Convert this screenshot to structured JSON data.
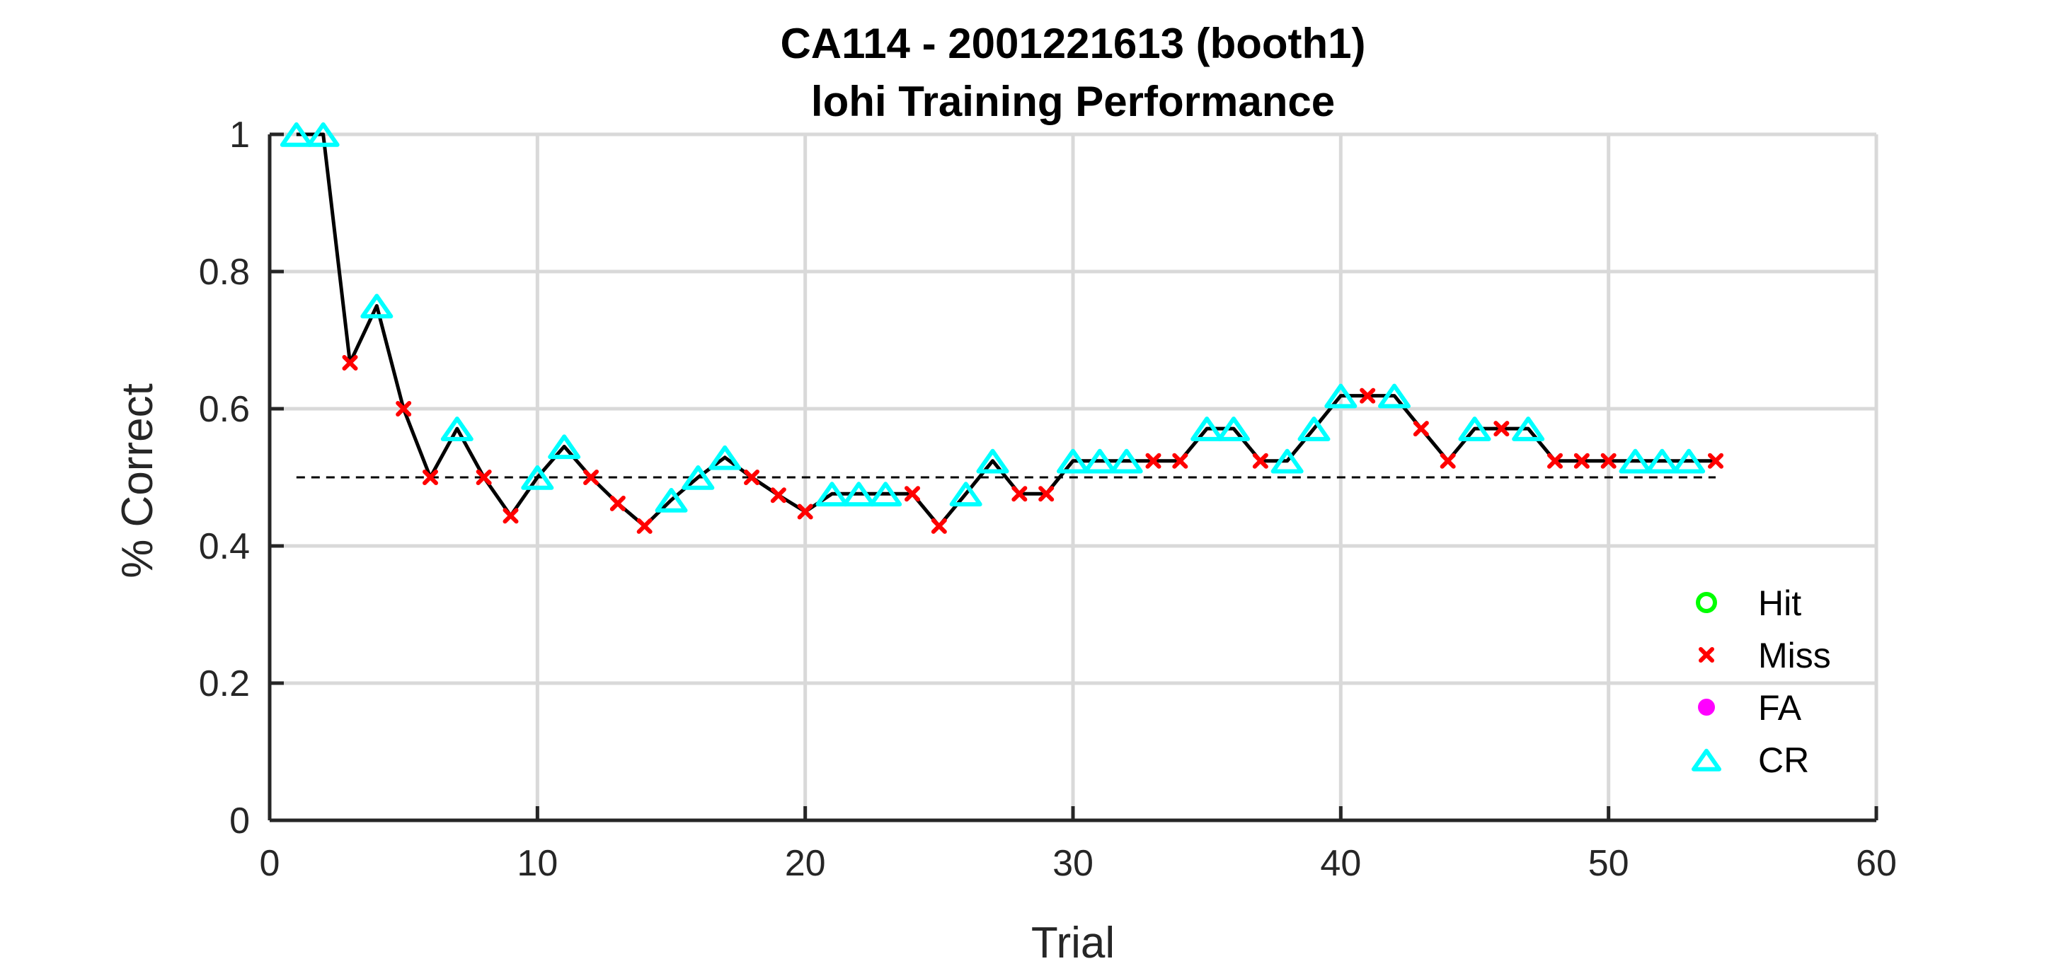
{
  "chart_data": {
    "type": "line",
    "title": "CA114 - 2001221613 (booth1)",
    "subtitle": "lohi Training Performance",
    "xlabel": "Trial",
    "ylabel": "% Correct",
    "xlim": [
      0,
      60
    ],
    "ylim": [
      0,
      1
    ],
    "xticks": [
      0,
      10,
      20,
      30,
      40,
      50,
      60
    ],
    "yticks": [
      0,
      0.2,
      0.4,
      0.6,
      0.8,
      1
    ],
    "xtick_labels": [
      "0",
      "10",
      "20",
      "30",
      "40",
      "50",
      "60"
    ],
    "ytick_labels": [
      "0",
      "0.2",
      "0.4",
      "0.6",
      "0.8",
      "1"
    ],
    "grid": true,
    "chance_level": 0.5,
    "legend_position": "bottom-right",
    "legend": [
      {
        "label": "Hit",
        "marker": "circle",
        "color": "#00ff00"
      },
      {
        "label": "Miss",
        "marker": "x",
        "color": "#ff0000"
      },
      {
        "label": "FA",
        "marker": "dot",
        "color": "#ff00ff"
      },
      {
        "label": "CR",
        "marker": "triangle",
        "color": "#00ffff"
      }
    ],
    "x": [
      1,
      2,
      3,
      4,
      5,
      6,
      7,
      8,
      9,
      10,
      11,
      12,
      13,
      14,
      15,
      16,
      17,
      18,
      19,
      20,
      21,
      22,
      23,
      24,
      25,
      26,
      27,
      28,
      29,
      30,
      31,
      32,
      33,
      34,
      35,
      36,
      37,
      38,
      39,
      40,
      41,
      42,
      43,
      44,
      45,
      46,
      47,
      48,
      49,
      50,
      51,
      52,
      53,
      54
    ],
    "y": [
      1,
      1,
      0.667,
      0.75,
      0.6,
      0.5,
      0.571,
      0.5,
      0.444,
      0.5,
      0.545,
      0.5,
      0.462,
      0.429,
      0.467,
      0.5,
      0.529,
      0.5,
      0.474,
      0.45,
      0.476,
      0.476,
      0.476,
      0.476,
      0.429,
      0.476,
      0.524,
      0.476,
      0.476,
      0.524,
      0.524,
      0.524,
      0.524,
      0.524,
      0.571,
      0.571,
      0.524,
      0.524,
      0.571,
      0.619,
      0.619,
      0.619,
      0.571,
      0.524,
      0.571,
      0.571,
      0.571,
      0.524,
      0.524,
      0.524,
      0.524,
      0.524,
      0.524,
      0.524
    ],
    "outcome": [
      "CR",
      "CR",
      "Miss",
      "CR",
      "Miss",
      "Miss",
      "CR",
      "Miss",
      "Miss",
      "CR",
      "CR",
      "Miss",
      "Miss",
      "Miss",
      "CR",
      "CR",
      "CR",
      "Miss",
      "Miss",
      "Miss",
      "CR",
      "CR",
      "CR",
      "Miss",
      "Miss",
      "CR",
      "CR",
      "Miss",
      "Miss",
      "CR",
      "CR",
      "CR",
      "Miss",
      "Miss",
      "CR",
      "CR",
      "Miss",
      "CR",
      "CR",
      "CR",
      "Miss",
      "CR",
      "Miss",
      "Miss",
      "CR",
      "Miss",
      "CR",
      "Miss",
      "Miss",
      "Miss",
      "CR",
      "CR",
      "CR",
      "Miss"
    ]
  }
}
